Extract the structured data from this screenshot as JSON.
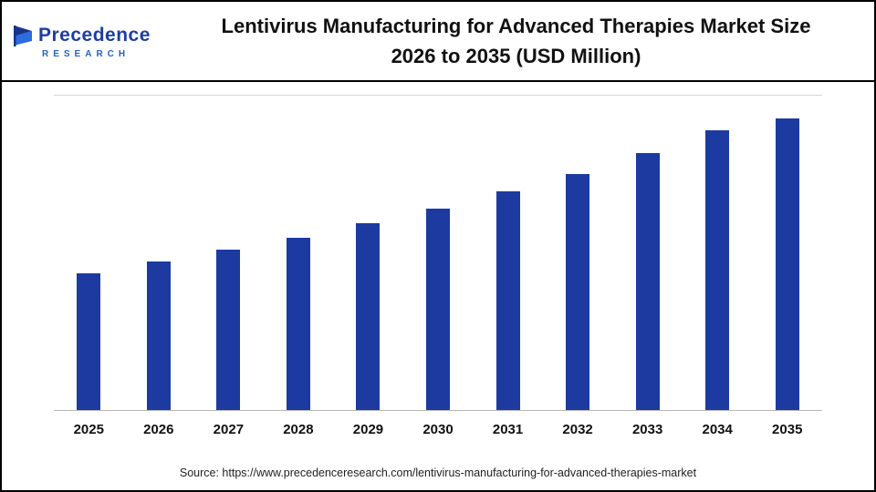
{
  "header": {
    "logo": {
      "line1": "Precedence",
      "line2": "RESEARCH"
    },
    "title_line1": "Lentivirus Manufacturing for Advanced Therapies Market Size",
    "title_line2": "2026 to 2035 (USD Million)"
  },
  "footer": {
    "source": "Source: https://www.precedenceresearch.com/lentivirus-manufacturing-for-advanced-therapies-market"
  },
  "theme": {
    "bar_color": "#1c3aa0",
    "logo_dark_blue": "#1e3f9f",
    "logo_light_blue": "#2563c4",
    "axis_line": "#b7b7b7"
  },
  "chart_data": {
    "type": "bar",
    "title": "Lentivirus Manufacturing for Advanced Therapies Market Size 2026 to 2035 (USD Million)",
    "categories": [
      "2025",
      "2026",
      "2027",
      "2028",
      "2029",
      "2030",
      "2031",
      "2032",
      "2033",
      "2034",
      "2035"
    ],
    "values": [
      47,
      51,
      55,
      59,
      64,
      69,
      75,
      81,
      88,
      96,
      100
    ],
    "values_note": "relative bar heights in % of tallest bar; no y-axis scale shown in image",
    "xlabel": "",
    "ylabel": "",
    "grid": false,
    "legend": false,
    "bar_color": "#1c3aa0"
  }
}
